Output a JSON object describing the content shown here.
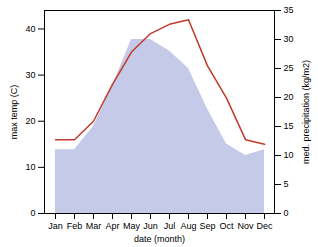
{
  "chart_data": {
    "type": "line",
    "categories": [
      "Jan",
      "Feb",
      "Mar",
      "Apr",
      "May",
      "Jun",
      "Jul",
      "Aug",
      "Sep",
      "Oct",
      "Nov",
      "Dec"
    ],
    "series": [
      {
        "type": "line",
        "color": "#c0392b",
        "values": [
          16,
          16,
          20,
          28,
          35,
          39,
          41,
          42,
          32,
          25,
          16,
          15
        ]
      },
      {
        "type": "area",
        "axis": "y2",
        "color": "#c5cae9",
        "values": [
          11,
          11,
          15,
          22,
          30,
          30,
          28,
          25,
          18,
          12,
          10,
          11
        ]
      }
    ],
    "xlabel": "date (month)",
    "ylabel": "max temp (C)",
    "y2label": "med. precipitation (kg/m2)",
    "ylim": [
      0,
      44
    ],
    "yticks": [
      0,
      10,
      20,
      30,
      40
    ],
    "y2lim": [
      0,
      35
    ],
    "y2ticks": [
      0,
      5,
      10,
      15,
      20,
      25,
      30,
      35
    ]
  }
}
